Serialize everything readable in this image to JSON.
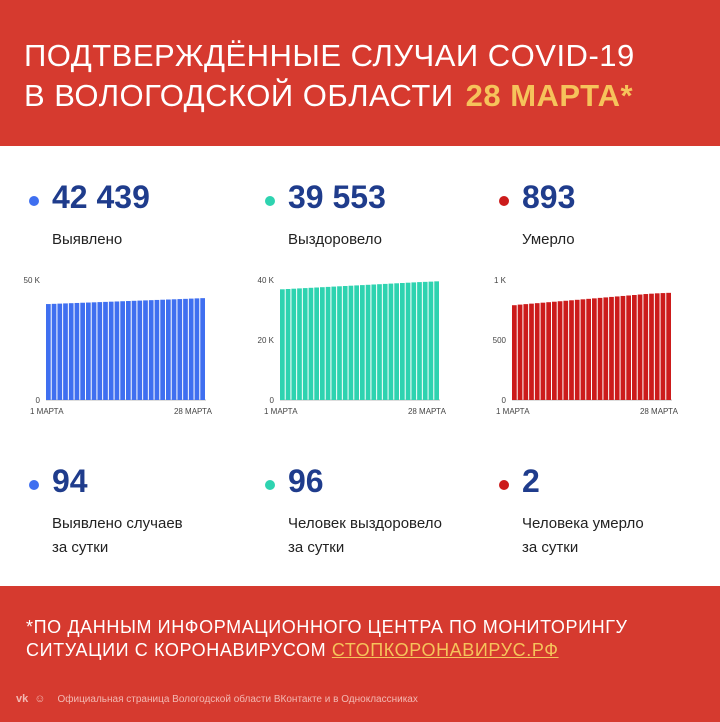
{
  "header": {
    "title_line1": "ПОДТВЕРЖДЁННЫЕ СЛУЧАИ COVID-19",
    "title_line2": "В ВОЛОГОДСКОЙ ОБЛАСТИ",
    "date": "28 МАРТА*"
  },
  "colors": {
    "header_bg": "#d63a2f",
    "accent_date": "#f6c35b",
    "number_text": "#1f3c8c",
    "blue": "#3f6ff0",
    "green": "#2ed3b0",
    "red": "#cc1b1b"
  },
  "stats": [
    {
      "value": "42 439",
      "label": "Выявлено",
      "daily_value": "94",
      "daily_label_1": "Выявлено случаев",
      "daily_label_2": "за сутки"
    },
    {
      "value": "39 553",
      "label": "Выздоровело",
      "daily_value": "96",
      "daily_label_1": "Человек выздоровело",
      "daily_label_2": "за сутки"
    },
    {
      "value": "893",
      "label": "Умерло",
      "daily_value": "2",
      "daily_label_1": "Человека умерло",
      "daily_label_2": "за сутки"
    }
  ],
  "chart_data": [
    {
      "type": "bar",
      "x_start": "1 МАРТА",
      "x_end": "28 МАРТА",
      "ytick_labels": [
        "50 K",
        "0"
      ],
      "yticks": [
        50000,
        0
      ],
      "ylim": [
        0,
        50000
      ],
      "values": [
        39980,
        40070,
        40160,
        40250,
        40340,
        40430,
        40520,
        40610,
        40700,
        40790,
        40880,
        40970,
        41060,
        41150,
        41240,
        41330,
        41420,
        41510,
        41600,
        41690,
        41780,
        41870,
        41960,
        42050,
        42140,
        42250,
        42345,
        42439
      ],
      "color": "#3f6ff0"
    },
    {
      "type": "bar",
      "x_start": "1 МАРТА",
      "x_end": "28 МАРТА",
      "ytick_labels": [
        "40 K",
        "20 K",
        "0"
      ],
      "yticks": [
        40000,
        20000,
        0
      ],
      "ylim": [
        0,
        40000
      ],
      "values": [
        36900,
        37000,
        37100,
        37200,
        37300,
        37400,
        37500,
        37600,
        37700,
        37800,
        37900,
        38000,
        38100,
        38200,
        38300,
        38400,
        38500,
        38600,
        38700,
        38800,
        38900,
        39000,
        39100,
        39200,
        39300,
        39380,
        39457,
        39553
      ],
      "color": "#2ed3b0"
    },
    {
      "type": "bar",
      "x_start": "1 МАРТА",
      "x_end": "28 МАРТА",
      "ytick_labels": [
        "1 K",
        "500",
        "0"
      ],
      "yticks": [
        1000,
        500,
        0
      ],
      "ylim": [
        0,
        1000
      ],
      "values": [
        790,
        795,
        799,
        803,
        807,
        811,
        815,
        819,
        823,
        827,
        831,
        835,
        839,
        843,
        847,
        851,
        855,
        859,
        863,
        867,
        871,
        875,
        879,
        883,
        886,
        889,
        891,
        893
      ],
      "color": "#cc1b1b"
    }
  ],
  "footer": {
    "source_line1": "*ПО ДАННЫМ ИНФОРМАЦИОННОГО ЦЕНТРА ПО МОНИТОРИНГУ",
    "source_line2_prefix": "СИТУАЦИИ С КОРОНАВИРУСОМ",
    "source_link": "СТОПКОРОНАВИРУС.РФ",
    "social_text": "Официальная страница Вологодской области ВКонтакте и в Одноклассниках",
    "social_icons": [
      "vk-icon",
      "ok-icon"
    ]
  }
}
